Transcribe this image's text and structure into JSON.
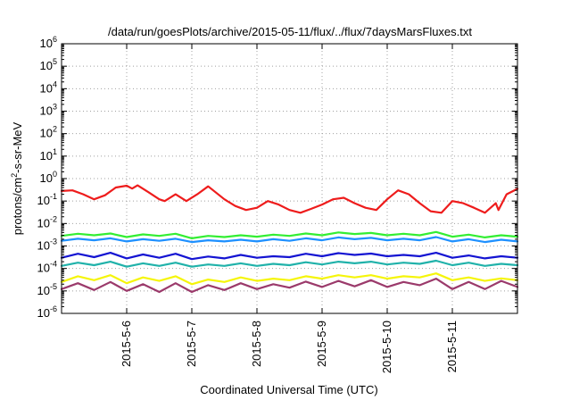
{
  "chart_data": {
    "type": "line",
    "title": "/data/run/goesPlots/archive/2015-05-11/flux/../flux/7daysMarsFluxes.txt",
    "xlabel": "Coordinated Universal Time (UTC)",
    "ylabel": "protons/cm2-s-sr-MeV",
    "ylabel_base": "protons/cm",
    "ylabel_sup": "2",
    "ylabel_rest": "-s-sr-MeV",
    "yscale": "log",
    "ylim": [
      1e-06,
      1000000.0
    ],
    "xlim": [
      "2015-05-05T00:00",
      "2015-05-12T00:00"
    ],
    "grid": true,
    "legend": "none",
    "x_tick_labels": [
      "2015-5-6",
      "2015-5-7",
      "2015-5-8",
      "2015-5-9",
      "2015-5-10",
      "2015-5-11"
    ],
    "x_tick_dates": [
      "2015-05-06T00:00",
      "2015-05-07T00:00",
      "2015-05-08T00:00",
      "2015-05-09T00:00",
      "2015-05-10T00:00",
      "2015-05-11T00:00"
    ],
    "y_tick_labels": [
      {
        "base": "10",
        "exp": "-6",
        "value": 1e-06
      },
      {
        "base": "10",
        "exp": "-5",
        "value": 1e-05
      },
      {
        "base": "10",
        "exp": "-4",
        "value": 0.0001
      },
      {
        "base": "10",
        "exp": "-3",
        "value": 0.001
      },
      {
        "base": "10",
        "exp": "-2",
        "value": 0.01
      },
      {
        "base": "10",
        "exp": "-1",
        "value": 0.1
      },
      {
        "base": "10",
        "exp": "0",
        "value": 1
      },
      {
        "base": "10",
        "exp": "1",
        "value": 10.0
      },
      {
        "base": "10",
        "exp": "2",
        "value": 100.0
      },
      {
        "base": "10",
        "exp": "3",
        "value": 1000.0
      },
      {
        "base": "10",
        "exp": "4",
        "value": 10000.0
      },
      {
        "base": "10",
        "exp": "5",
        "value": 100000.0
      },
      {
        "base": "10",
        "exp": "6",
        "value": 1000000.0
      }
    ],
    "series": [
      {
        "color": "#ee1c1c",
        "x": [
          "2015-05-05T00:00",
          "2015-05-05T04:00",
          "2015-05-05T08:00",
          "2015-05-05T12:00",
          "2015-05-05T16:00",
          "2015-05-05T20:00",
          "2015-05-06T00:00",
          "2015-05-06T02:00",
          "2015-05-06T04:00",
          "2015-05-06T08:00",
          "2015-05-06T12:00",
          "2015-05-06T14:00",
          "2015-05-06T18:00",
          "2015-05-06T22:00",
          "2015-05-07T02:00",
          "2015-05-07T06:00",
          "2015-05-07T12:00",
          "2015-05-07T16:00",
          "2015-05-07T20:00",
          "2015-05-08T00:00",
          "2015-05-08T04:00",
          "2015-05-08T08:00",
          "2015-05-08T12:00",
          "2015-05-08T16:00",
          "2015-05-08T20:00",
          "2015-05-09T00:00",
          "2015-05-09T04:00",
          "2015-05-09T08:00",
          "2015-05-09T12:00",
          "2015-05-09T16:00",
          "2015-05-09T20:00",
          "2015-05-10T00:00",
          "2015-05-10T04:00",
          "2015-05-10T08:00",
          "2015-05-10T12:00",
          "2015-05-10T16:00",
          "2015-05-10T20:00",
          "2015-05-11T00:00",
          "2015-05-11T04:00",
          "2015-05-11T08:00",
          "2015-05-11T12:00",
          "2015-05-11T16:00",
          "2015-05-11T17:00",
          "2015-05-11T20:00",
          "2015-05-12T00:00"
        ],
        "y": [
          0.28,
          0.3,
          0.2,
          0.12,
          0.18,
          0.4,
          0.48,
          0.36,
          0.5,
          0.25,
          0.12,
          0.1,
          0.2,
          0.1,
          0.2,
          0.45,
          0.12,
          0.06,
          0.04,
          0.05,
          0.1,
          0.07,
          0.04,
          0.03,
          0.045,
          0.07,
          0.12,
          0.14,
          0.08,
          0.05,
          0.04,
          0.12,
          0.3,
          0.2,
          0.08,
          0.035,
          0.03,
          0.1,
          0.08,
          0.05,
          0.03,
          0.08,
          0.04,
          0.2,
          0.35
        ]
      },
      {
        "color": "#33ee33",
        "x": [
          "2015-05-05T00:00",
          "2015-05-05T06:00",
          "2015-05-05T12:00",
          "2015-05-05T18:00",
          "2015-05-06T00:00",
          "2015-05-06T06:00",
          "2015-05-06T12:00",
          "2015-05-06T18:00",
          "2015-05-07T00:00",
          "2015-05-07T06:00",
          "2015-05-07T12:00",
          "2015-05-07T18:00",
          "2015-05-08T00:00",
          "2015-05-08T06:00",
          "2015-05-08T12:00",
          "2015-05-08T18:00",
          "2015-05-09T00:00",
          "2015-05-09T06:00",
          "2015-05-09T12:00",
          "2015-05-09T18:00",
          "2015-05-10T00:00",
          "2015-05-10T06:00",
          "2015-05-10T12:00",
          "2015-05-10T18:00",
          "2015-05-11T00:00",
          "2015-05-11T06:00",
          "2015-05-11T12:00",
          "2015-05-11T18:00",
          "2015-05-12T00:00"
        ],
        "y": [
          0.0028,
          0.0035,
          0.003,
          0.0036,
          0.0025,
          0.0033,
          0.0028,
          0.0035,
          0.0022,
          0.0028,
          0.0025,
          0.003,
          0.0026,
          0.0032,
          0.0028,
          0.0036,
          0.003,
          0.004,
          0.0034,
          0.0038,
          0.003,
          0.0035,
          0.003,
          0.0042,
          0.0026,
          0.0032,
          0.0024,
          0.003,
          0.0026
        ]
      },
      {
        "color": "#1e90ff",
        "x": [
          "2015-05-05T00:00",
          "2015-05-05T06:00",
          "2015-05-05T12:00",
          "2015-05-05T18:00",
          "2015-05-06T00:00",
          "2015-05-06T06:00",
          "2015-05-06T12:00",
          "2015-05-06T18:00",
          "2015-05-07T00:00",
          "2015-05-07T06:00",
          "2015-05-07T12:00",
          "2015-05-07T18:00",
          "2015-05-08T00:00",
          "2015-05-08T06:00",
          "2015-05-08T12:00",
          "2015-05-08T18:00",
          "2015-05-09T00:00",
          "2015-05-09T06:00",
          "2015-05-09T12:00",
          "2015-05-09T18:00",
          "2015-05-10T00:00",
          "2015-05-10T06:00",
          "2015-05-10T12:00",
          "2015-05-10T18:00",
          "2015-05-11T00:00",
          "2015-05-11T06:00",
          "2015-05-11T12:00",
          "2015-05-11T18:00",
          "2015-05-12T00:00"
        ],
        "y": [
          0.0017,
          0.0021,
          0.0018,
          0.0022,
          0.0016,
          0.002,
          0.0017,
          0.0021,
          0.0015,
          0.0018,
          0.0016,
          0.0019,
          0.0016,
          0.002,
          0.0017,
          0.0022,
          0.0018,
          0.0024,
          0.002,
          0.0023,
          0.0018,
          0.0021,
          0.0018,
          0.0025,
          0.0016,
          0.002,
          0.0015,
          0.0019,
          0.0016
        ]
      },
      {
        "color": "#1414d2",
        "x": [
          "2015-05-05T00:00",
          "2015-05-05T06:00",
          "2015-05-05T12:00",
          "2015-05-05T18:00",
          "2015-05-06T00:00",
          "2015-05-06T06:00",
          "2015-05-06T12:00",
          "2015-05-06T18:00",
          "2015-05-07T00:00",
          "2015-05-07T06:00",
          "2015-05-07T12:00",
          "2015-05-07T18:00",
          "2015-05-08T00:00",
          "2015-05-08T06:00",
          "2015-05-08T12:00",
          "2015-05-08T18:00",
          "2015-05-09T00:00",
          "2015-05-09T06:00",
          "2015-05-09T12:00",
          "2015-05-09T18:00",
          "2015-05-10T00:00",
          "2015-05-10T06:00",
          "2015-05-10T12:00",
          "2015-05-10T18:00",
          "2015-05-11T00:00",
          "2015-05-11T06:00",
          "2015-05-11T12:00",
          "2015-05-11T18:00",
          "2015-05-12T00:00"
        ],
        "y": [
          0.0003,
          0.00045,
          0.00032,
          0.0005,
          0.00028,
          0.00042,
          0.0003,
          0.00045,
          0.00026,
          0.00034,
          0.00028,
          0.0004,
          0.0003,
          0.00035,
          0.00032,
          0.00045,
          0.00035,
          0.00048,
          0.0004,
          0.00046,
          0.00035,
          0.0004,
          0.00035,
          0.0005,
          0.0003,
          0.00038,
          0.00028,
          0.00035,
          0.0003
        ]
      },
      {
        "color": "#20b2aa",
        "x": [
          "2015-05-05T00:00",
          "2015-05-05T06:00",
          "2015-05-05T12:00",
          "2015-05-05T18:00",
          "2015-05-06T00:00",
          "2015-05-06T06:00",
          "2015-05-06T12:00",
          "2015-05-06T18:00",
          "2015-05-07T00:00",
          "2015-05-07T06:00",
          "2015-05-07T12:00",
          "2015-05-07T18:00",
          "2015-05-08T00:00",
          "2015-05-08T06:00",
          "2015-05-08T12:00",
          "2015-05-08T18:00",
          "2015-05-09T00:00",
          "2015-05-09T06:00",
          "2015-05-09T12:00",
          "2015-05-09T18:00",
          "2015-05-10T00:00",
          "2015-05-10T06:00",
          "2015-05-10T12:00",
          "2015-05-10T18:00",
          "2015-05-11T00:00",
          "2015-05-11T06:00",
          "2015-05-11T12:00",
          "2015-05-11T18:00",
          "2015-05-12T00:00"
        ],
        "y": [
          0.00013,
          0.00018,
          0.00014,
          0.0002,
          0.00012,
          0.00017,
          0.00013,
          0.00018,
          0.00012,
          0.00015,
          0.00013,
          0.00017,
          0.00013,
          0.00016,
          0.00014,
          0.00019,
          0.00015,
          0.0002,
          0.00017,
          0.0002,
          0.00015,
          0.00018,
          0.00016,
          0.00022,
          0.00014,
          0.00018,
          0.00013,
          0.00016,
          0.00014
        ]
      },
      {
        "color": "#f5f50a",
        "x": [
          "2015-05-05T00:00",
          "2015-05-05T06:00",
          "2015-05-05T12:00",
          "2015-05-05T18:00",
          "2015-05-06T00:00",
          "2015-05-06T06:00",
          "2015-05-06T12:00",
          "2015-05-06T18:00",
          "2015-05-07T00:00",
          "2015-05-07T06:00",
          "2015-05-07T12:00",
          "2015-05-07T18:00",
          "2015-05-08T00:00",
          "2015-05-08T06:00",
          "2015-05-08T12:00",
          "2015-05-08T18:00",
          "2015-05-09T00:00",
          "2015-05-09T06:00",
          "2015-05-09T12:00",
          "2015-05-09T18:00",
          "2015-05-10T00:00",
          "2015-05-10T06:00",
          "2015-05-10T12:00",
          "2015-05-10T18:00",
          "2015-05-11T00:00",
          "2015-05-11T06:00",
          "2015-05-11T12:00",
          "2015-05-11T18:00",
          "2015-05-12T00:00"
        ],
        "y": [
          2.5e-05,
          4.5e-05,
          3e-05,
          5e-05,
          2.2e-05,
          4e-05,
          2.8e-05,
          4.5e-05,
          2e-05,
          3.2e-05,
          2.5e-05,
          4e-05,
          2.8e-05,
          3.5e-05,
          3e-05,
          4.5e-05,
          3.5e-05,
          5e-05,
          4e-05,
          5e-05,
          3.5e-05,
          4.5e-05,
          4e-05,
          6e-05,
          3e-05,
          4e-05,
          2.8e-05,
          3.6e-05,
          3e-05
        ]
      },
      {
        "color": "#9b3a6b",
        "x": [
          "2015-05-05T00:00",
          "2015-05-05T06:00",
          "2015-05-05T12:00",
          "2015-05-05T18:00",
          "2015-05-06T00:00",
          "2015-05-06T06:00",
          "2015-05-06T12:00",
          "2015-05-06T18:00",
          "2015-05-07T00:00",
          "2015-05-07T06:00",
          "2015-05-07T12:00",
          "2015-05-07T18:00",
          "2015-05-08T00:00",
          "2015-05-08T06:00",
          "2015-05-08T12:00",
          "2015-05-08T18:00",
          "2015-05-09T00:00",
          "2015-05-09T06:00",
          "2015-05-09T12:00",
          "2015-05-09T18:00",
          "2015-05-10T00:00",
          "2015-05-10T06:00",
          "2015-05-10T12:00",
          "2015-05-10T18:00",
          "2015-05-11T00:00",
          "2015-05-11T06:00",
          "2015-05-11T12:00",
          "2015-05-11T18:00",
          "2015-05-12T00:00"
        ],
        "y": [
          1.2e-05,
          2.2e-05,
          1.1e-05,
          2.5e-05,
          1e-05,
          2e-05,
          9e-06,
          2.2e-05,
          9e-06,
          1.8e-05,
          1.1e-05,
          2.2e-05,
          1.2e-05,
          2e-05,
          1.4e-05,
          2.6e-05,
          1.5e-05,
          2.8e-05,
          1.6e-05,
          3e-05,
          1.5e-05,
          2.5e-05,
          1.8e-05,
          3.5e-05,
          1.2e-05,
          2.5e-05,
          1.2e-05,
          2.8e-05,
          1.5e-05
        ]
      }
    ]
  }
}
